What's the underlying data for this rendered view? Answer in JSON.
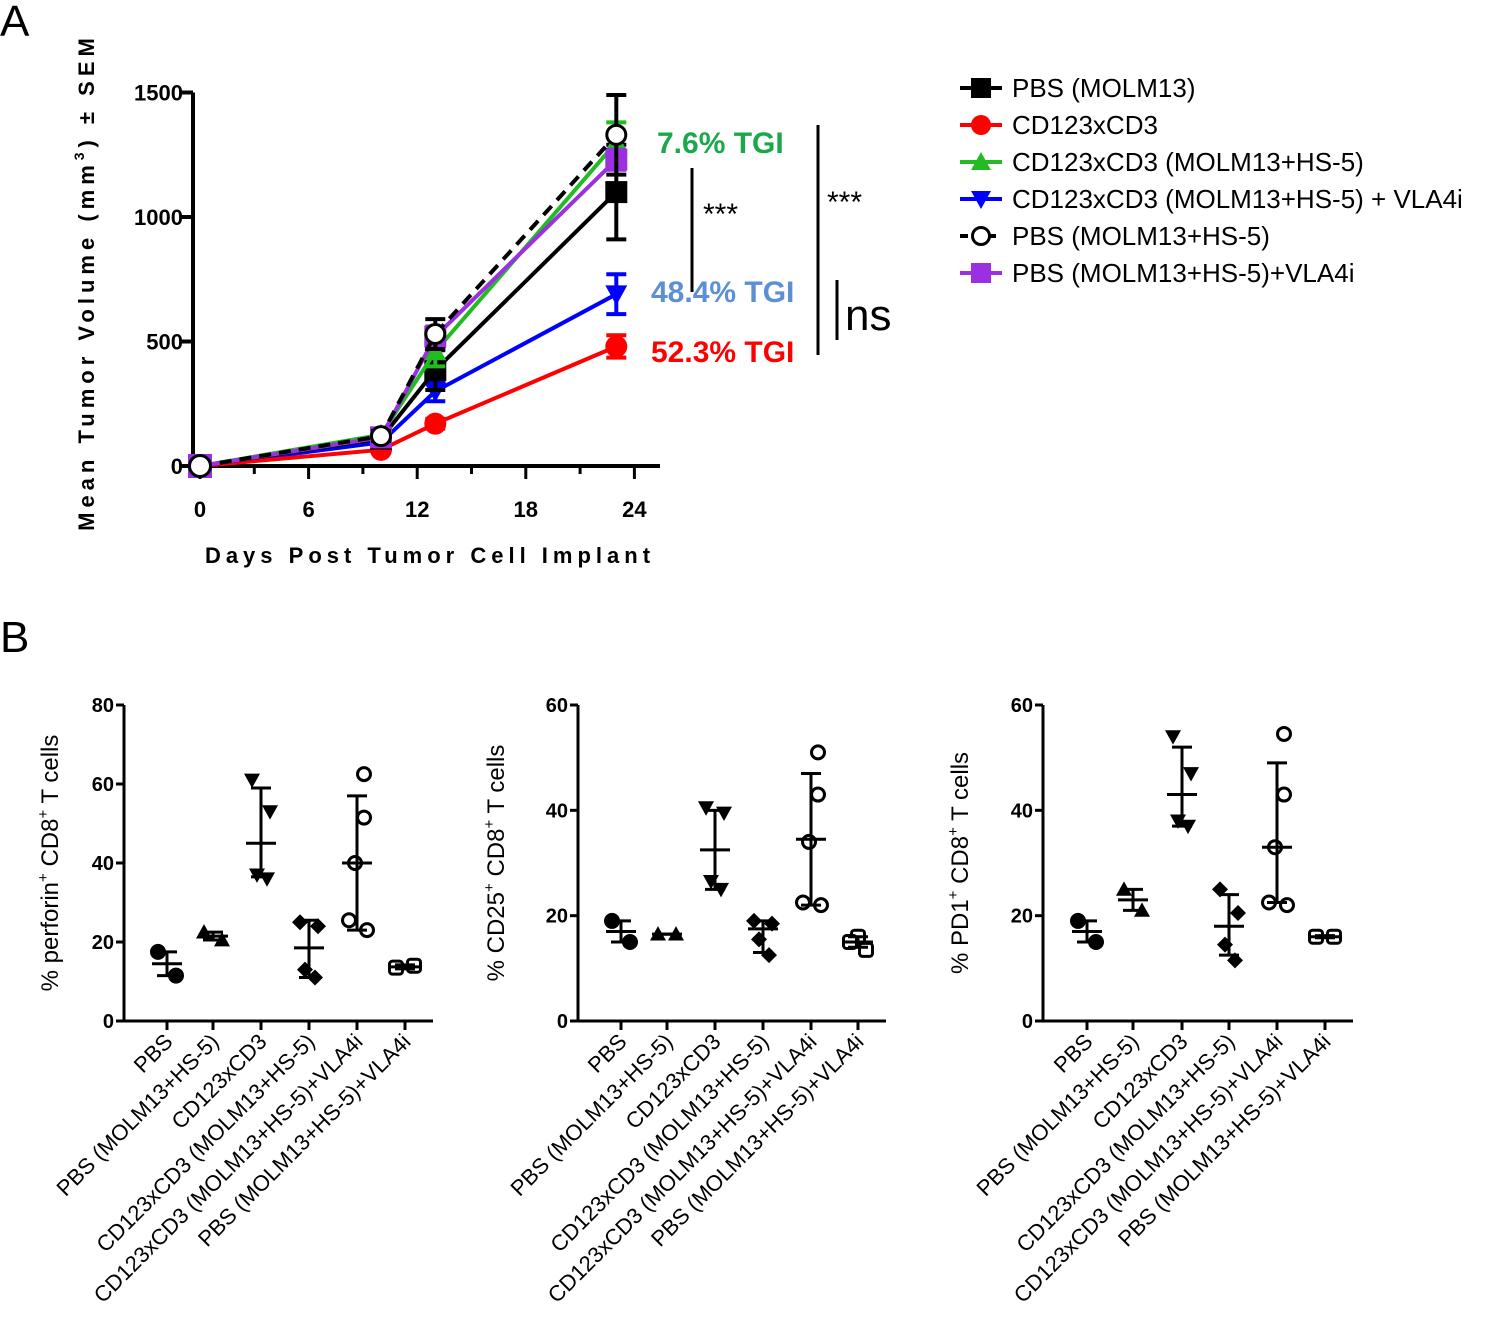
{
  "panel_labels": {
    "a": "A",
    "b": "B"
  },
  "chart_data": [
    {
      "type": "line",
      "panel": "A",
      "title": "",
      "xlabel": "Days Post Tumor Cell Implant",
      "ylabel": "Mean Tumor Volume (mm",
      "ylabel_sup": "3",
      "ylabel_end": ") ± SEM",
      "xlim": [
        0,
        24
      ],
      "ylim": [
        0,
        1500
      ],
      "xticks": [
        0,
        6,
        12,
        18,
        24
      ],
      "yticks": [
        0,
        500,
        1000,
        1500
      ],
      "x": [
        0,
        10,
        13,
        23
      ],
      "series": [
        {
          "name": "PBS (MOLM13)",
          "color": "#000000",
          "marker": "square",
          "dashed": false,
          "values": [
            0,
            110,
            385,
            1100
          ],
          "err": [
            0,
            20,
            80,
            190
          ]
        },
        {
          "name": "CD123xCD3",
          "color": "#ff0000",
          "marker": "circle",
          "dashed": false,
          "values": [
            0,
            65,
            170,
            480
          ],
          "err": [
            0,
            10,
            20,
            45
          ]
        },
        {
          "name": "CD123xCD3 (MOLM13+HS-5)",
          "color": "#22bb22",
          "marker": "triangle-up",
          "dashed": false,
          "values": [
            0,
            125,
            460,
            1300
          ],
          "err": [
            0,
            15,
            60,
            80
          ]
        },
        {
          "name": "CD123xCD3 (MOLM13+HS-5) + VLA4i",
          "color": "#0000ff",
          "marker": "triangle-down",
          "dashed": false,
          "values": [
            0,
            95,
            300,
            690
          ],
          "err": [
            0,
            15,
            40,
            80
          ]
        },
        {
          "name": "PBS (MOLM13+HS-5)",
          "color": "#000000",
          "marker": "open-circle",
          "dashed": true,
          "values": [
            0,
            120,
            530,
            1330
          ],
          "err": [
            0,
            20,
            60,
            160
          ]
        },
        {
          "name": "PBS (MOLM13+HS-5)+VLA4i",
          "color": "#9b30e0",
          "marker": "square",
          "dashed": false,
          "values": [
            0,
            115,
            520,
            1230
          ],
          "err": [
            0,
            15,
            40,
            40
          ]
        }
      ],
      "annotations": [
        {
          "text": "7.6% TGI",
          "color": "#1aa84a"
        },
        {
          "text": "48.4% TGI",
          "color": "#5b8fd6"
        },
        {
          "text": "52.3% TGI",
          "color": "#ff0000"
        }
      ],
      "significance": [
        {
          "text": "***"
        },
        {
          "text": "***"
        },
        {
          "text": "ns"
        }
      ]
    },
    {
      "type": "scatter",
      "panel": "B1",
      "ylabel": "% perforin",
      "ylabel_sup1": "+",
      "ylabel_mid": " CD8",
      "ylabel_sup2": "+",
      "ylabel_end": " T cells",
      "ylim": [
        0,
        80
      ],
      "yticks": [
        0,
        20,
        40,
        60,
        80
      ],
      "categories": [
        "PBS",
        "PBS (MOLM13+HS-5)",
        "CD123xCD3",
        "CD123xCD3 (MOLM13+HS-5)",
        "CD123xCD3 (MOLM13+HS-5)+VLA4i",
        "PBS (MOLM13+HS-5)+VLA4i"
      ],
      "markers": [
        "circle",
        "triangle-up",
        "triangle-down",
        "diamond",
        "open-circle",
        "open-square"
      ],
      "groups": [
        {
          "points": [
            17.5,
            11.5
          ],
          "mean": 14.5,
          "sd": [
            11.5,
            17.5
          ]
        },
        {
          "points": [
            22.5,
            20.5
          ],
          "mean": 21.5,
          "sd": [
            20.5,
            22.5
          ]
        },
        {
          "points": [
            61,
            53,
            37,
            36
          ],
          "mean": 45,
          "sd": [
            36.5,
            59
          ]
        },
        {
          "points": [
            25,
            24,
            13,
            11
          ],
          "mean": 18.5,
          "sd": [
            11,
            25.5
          ]
        },
        {
          "points": [
            62.5,
            51.5,
            40,
            25.5,
            23
          ],
          "mean": 40,
          "sd": [
            23,
            57
          ]
        },
        {
          "points": [
            13.5,
            14
          ],
          "mean": 13.7,
          "sd": [
            13.2,
            14.2
          ]
        }
      ]
    },
    {
      "type": "scatter",
      "panel": "B2",
      "ylabel": "% CD25",
      "ylabel_sup1": "+",
      "ylabel_mid": " CD8",
      "ylabel_sup2": "+",
      "ylabel_end": " T cells",
      "ylim": [
        0,
        60
      ],
      "yticks": [
        0,
        20,
        40,
        60
      ],
      "categories": [
        "PBS",
        "PBS (MOLM13+HS-5)",
        "CD123xCD3",
        "CD123xCD3 (MOLM13+HS-5)",
        "CD123xCD3 (MOLM13+HS-5)+VLA4i",
        "PBS (MOLM13+HS-5)+VLA4i"
      ],
      "markers": [
        "circle",
        "triangle-up",
        "triangle-down",
        "diamond",
        "open-circle",
        "open-square"
      ],
      "groups": [
        {
          "points": [
            19,
            15
          ],
          "mean": 17,
          "sd": [
            15,
            19
          ]
        },
        {
          "points": [
            16.5,
            16.5
          ],
          "mean": 16.5,
          "sd": [
            16.5,
            16.5
          ]
        },
        {
          "points": [
            40.5,
            39.5,
            26.5,
            25
          ],
          "mean": 32.5,
          "sd": [
            25,
            40
          ]
        },
        {
          "points": [
            19,
            18.5,
            15.5,
            12.5
          ],
          "mean": 17.5,
          "sd": [
            13,
            19
          ]
        },
        {
          "points": [
            51,
            43,
            34,
            22.5,
            22
          ],
          "mean": 34.5,
          "sd": [
            22,
            47
          ]
        },
        {
          "points": [
            16,
            15,
            13.5
          ],
          "mean": 15,
          "sd": [
            14,
            16
          ]
        }
      ]
    },
    {
      "type": "scatter",
      "panel": "B3",
      "ylabel": "% PD1",
      "ylabel_sup1": "+",
      "ylabel_mid": " CD8",
      "ylabel_sup2": "+",
      "ylabel_end": " T cells",
      "ylim": [
        0,
        60
      ],
      "yticks": [
        0,
        20,
        40,
        60
      ],
      "categories": [
        "PBS",
        "PBS (MOLM13+HS-5)",
        "CD123xCD3",
        "CD123xCD3 (MOLM13+HS-5)",
        "CD123xCD3 (MOLM13+HS-5)+VLA4i",
        "PBS (MOLM13+HS-5)+VLA4i"
      ],
      "markers": [
        "circle",
        "triangle-up",
        "triangle-down",
        "diamond",
        "open-circle",
        "open-square"
      ],
      "groups": [
        {
          "points": [
            19,
            15
          ],
          "mean": 17,
          "sd": [
            15,
            19
          ]
        },
        {
          "points": [
            25,
            21
          ],
          "mean": 23,
          "sd": [
            21,
            25
          ]
        },
        {
          "points": [
            54,
            47,
            38,
            37
          ],
          "mean": 43,
          "sd": [
            37,
            52
          ]
        },
        {
          "points": [
            25,
            20.5,
            14.5,
            11.5
          ],
          "mean": 18,
          "sd": [
            12.5,
            24
          ]
        },
        {
          "points": [
            54.5,
            43,
            33,
            22.5,
            22
          ],
          "mean": 33,
          "sd": [
            22.5,
            49
          ]
        },
        {
          "points": [
            16,
            16
          ],
          "mean": 16,
          "sd": [
            15.8,
            16.2
          ]
        }
      ]
    }
  ]
}
